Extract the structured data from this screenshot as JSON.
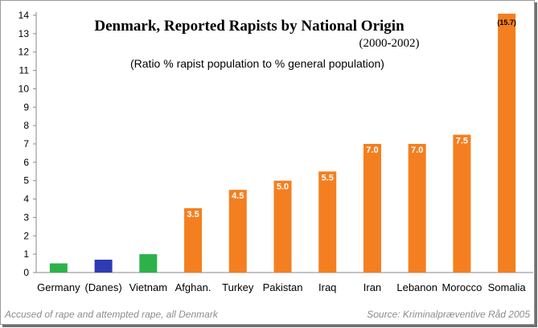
{
  "chart_data": {
    "type": "bar",
    "title": "Denmark, Reported Rapists by National Origin",
    "subtitle": "(2000-2002)",
    "annotation": "(Ratio % rapist population to % general population)",
    "categories": [
      "Germany",
      "(Danes)",
      "Vietnam",
      "Afghan.",
      "Turkey",
      "Pakistan",
      "Iraq",
      "Iran",
      "Lebanon",
      "Morocco",
      "Somalia"
    ],
    "values": [
      0.5,
      0.7,
      1.0,
      3.5,
      4.5,
      5.0,
      5.5,
      7.0,
      7.0,
      7.5,
      15.7
    ],
    "data_labels": [
      "0.5",
      "0.7",
      "1.0",
      "3.5",
      "4.5",
      "5.0",
      "5.5",
      "7.0",
      "7.0",
      "7.5",
      "(15.7)"
    ],
    "bar_colors": [
      "#2db24a",
      "#2f3bb3",
      "#2db24a",
      "#f47f20",
      "#f47f20",
      "#f47f20",
      "#f47f20",
      "#f47f20",
      "#f47f20",
      "#f47f20",
      "#f47f20"
    ],
    "label_colors": [
      "#2db24a",
      "#2f3bb3",
      "#2db24a",
      "#ffffff",
      "#ffffff",
      "#ffffff",
      "#ffffff",
      "#ffffff",
      "#ffffff",
      "#ffffff",
      "#000000"
    ],
    "yticks": [
      "0",
      "1",
      "2",
      "3",
      "4",
      "5",
      "6",
      "7",
      "8",
      "9",
      "10",
      "11",
      "12",
      "13",
      "14"
    ],
    "ylim": [
      0,
      14
    ],
    "grid": false,
    "footer_left": "Accused of rape and attempted rape, all Denmark",
    "footer_right": "Source: Kriminalpræventive Råd 2005"
  }
}
